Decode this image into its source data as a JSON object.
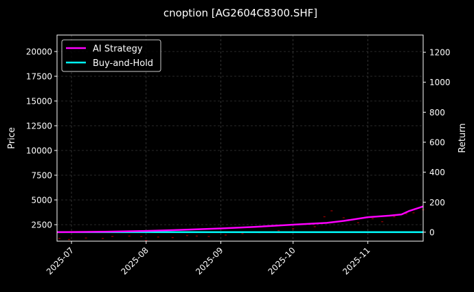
{
  "chart_data": {
    "type": "line",
    "title": "cnoption [AG2604C8300.SHF]",
    "ylabel_left": "Price",
    "ylabel_right": "Return",
    "xlim": [
      "2025-06-25",
      "2025-11-24"
    ],
    "ylim_left": [
      833,
      21667
    ],
    "ylim_right": [
      -60,
      1315
    ],
    "x_ticks": [
      "2025-07",
      "2025-08",
      "2025-09",
      "2025-10",
      "2025-11"
    ],
    "x_tick_dates": [
      "2025-07-01",
      "2025-08-01",
      "2025-09-01",
      "2025-10-01",
      "2025-11-01"
    ],
    "y_ticks_left": [
      2500,
      5000,
      7500,
      10000,
      12500,
      15000,
      17500,
      20000
    ],
    "y_ticks_right": [
      0,
      200,
      400,
      600,
      800,
      1000,
      1200
    ],
    "grid": true,
    "legend_position": "top-left",
    "colors": {
      "background": "#000000",
      "ai_strategy": "#ff00ff",
      "buy_and_hold": "#00ffff",
      "price": "#8b0000",
      "grid": "#555555"
    },
    "series": [
      {
        "name": "AI Strategy",
        "axis": "right",
        "x": [
          "2025-06-25",
          "2025-07-15",
          "2025-08-01",
          "2025-08-15",
          "2025-09-01",
          "2025-09-15",
          "2025-10-01",
          "2025-10-15",
          "2025-10-22",
          "2025-11-01",
          "2025-11-10",
          "2025-11-15",
          "2025-11-18",
          "2025-11-24"
        ],
        "values": [
          0,
          3,
          8,
          15,
          25,
          35,
          50,
          62,
          75,
          100,
          110,
          118,
          140,
          172
        ]
      },
      {
        "name": "Buy-and-Hold",
        "axis": "right",
        "x": [
          "2025-06-25",
          "2025-11-24"
        ],
        "values": [
          0,
          0
        ]
      },
      {
        "name": "Price",
        "axis": "left",
        "x": [
          "2025-06-26",
          "2025-06-30",
          "2025-07-07",
          "2025-07-14",
          "2025-07-18",
          "2025-07-25",
          "2025-07-30",
          "2025-08-01",
          "2025-08-06",
          "2025-08-12",
          "2025-08-18",
          "2025-08-22",
          "2025-08-27",
          "2025-09-03",
          "2025-09-10",
          "2025-09-17",
          "2025-09-25",
          "2025-10-01",
          "2025-10-10",
          "2025-10-14",
          "2025-10-17",
          "2025-10-22",
          "2025-10-28",
          "2025-11-03",
          "2025-11-07",
          "2025-11-12",
          "2025-11-17",
          "2025-11-20",
          "2025-11-24"
        ],
        "values": [
          1100,
          1000,
          1150,
          1100,
          1300,
          1350,
          1300,
          900,
          1250,
          1200,
          1400,
          1350,
          1300,
          1450,
          1600,
          1700,
          1900,
          2100,
          2300,
          3300,
          3900,
          3200,
          2700,
          3100,
          2800,
          3300,
          3600,
          3700,
          4000
        ]
      }
    ]
  }
}
